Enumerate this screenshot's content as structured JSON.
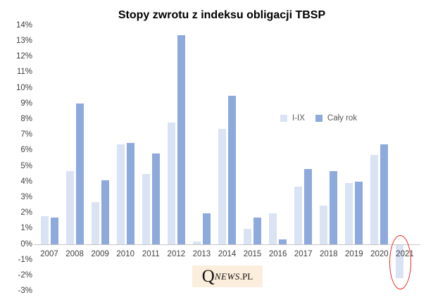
{
  "title": "Stopy zwrotu z indeksu obligacji TBSP",
  "legend": {
    "items": [
      "I-IX",
      "Cały rok"
    ]
  },
  "watermark": {
    "q": "Q",
    "news": "NEWS",
    "pl": ".PL",
    "background": "#fceedd"
  },
  "colors": {
    "series_light": "#dae3f3",
    "series_dark": "#8ea9db",
    "axis_line": "#c6c6c6",
    "tick_text": "#404040",
    "legend_text": "#595959",
    "annotation_red": "#e8291f"
  },
  "chart_data": {
    "type": "bar",
    "title": "Stopy zwrotu z indeksu obligacji TBSP",
    "categories": [
      "2007",
      "2008",
      "2009",
      "2010",
      "2011",
      "2012",
      "2013",
      "2014",
      "2015",
      "2016",
      "2017",
      "2018",
      "2019",
      "2020",
      "2021"
    ],
    "series": [
      {
        "name": "I-IX",
        "color": "#dae3f3",
        "values": [
          1.8,
          4.7,
          2.7,
          6.4,
          4.5,
          7.8,
          0.2,
          7.4,
          1.0,
          2.0,
          3.7,
          2.5,
          3.9,
          5.7,
          -2.1
        ]
      },
      {
        "name": "Cały rok",
        "color": "#8ea9db",
        "values": [
          1.7,
          9.0,
          4.1,
          6.5,
          5.8,
          13.4,
          2.0,
          9.5,
          1.7,
          0.3,
          4.8,
          4.7,
          4.0,
          6.4,
          null
        ]
      }
    ],
    "xlabel": "",
    "ylabel": "",
    "ylim": [
      -3,
      14
    ],
    "ytick_step": 1,
    "ytick_format": "percent",
    "grid": false,
    "legend_position": "inside-right-upper",
    "annotations": [
      {
        "type": "ellipse",
        "target_category": "2021",
        "target_series": "I-IX",
        "color": "#e8291f",
        "purpose": "highlights negative 2021 year-to-date return"
      }
    ]
  }
}
